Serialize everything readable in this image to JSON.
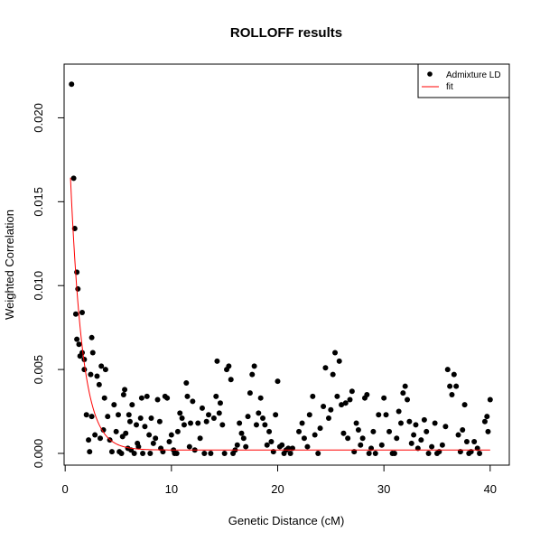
{
  "chart_data": {
    "type": "scatter",
    "title": "ROLLOFF results",
    "xlabel": "Genetic Distance (cM)",
    "ylabel": "Weighted Correlation",
    "xlim": [
      -0.1,
      41.8
    ],
    "ylim": [
      -0.0007,
      0.0232
    ],
    "x_ticks": [
      0,
      10,
      20,
      30,
      40
    ],
    "x_tick_labels": [
      "0",
      "10",
      "20",
      "30",
      "40"
    ],
    "y_ticks": [
      0.0,
      0.005,
      0.01,
      0.015,
      0.02
    ],
    "y_tick_labels": [
      "0.000",
      "0.005",
      "0.010",
      "0.015",
      "0.020"
    ],
    "legend": {
      "position": "top-right",
      "entries": [
        {
          "label": "Admixture LD",
          "type": "point",
          "color": "#000000"
        },
        {
          "label": "fit",
          "type": "line",
          "color": "#ff0000"
        }
      ]
    },
    "series": [
      {
        "name": "Admixture LD",
        "type": "scatter",
        "color": "#000000",
        "points": [
          [
            0.6,
            0.022
          ],
          [
            0.8,
            0.0164
          ],
          [
            0.9,
            0.0134
          ],
          [
            1.0,
            0.0083
          ],
          [
            1.1,
            0.0108
          ],
          [
            1.2,
            0.0098
          ],
          [
            1.1,
            0.0068
          ],
          [
            1.3,
            0.0065
          ],
          [
            1.4,
            0.0058
          ],
          [
            1.6,
            0.0084
          ],
          [
            1.6,
            0.006
          ],
          [
            1.8,
            0.0056
          ],
          [
            1.8,
            0.005
          ],
          [
            2.0,
            0.0023
          ],
          [
            2.2,
            0.0008
          ],
          [
            2.3,
            0.0001
          ],
          [
            2.4,
            0.0047
          ],
          [
            2.5,
            0.0069
          ],
          [
            2.5,
            0.0022
          ],
          [
            2.6,
            0.006
          ],
          [
            2.8,
            0.0011
          ],
          [
            3.0,
            0.0046
          ],
          [
            3.2,
            0.0041
          ],
          [
            3.3,
            0.0009
          ],
          [
            3.4,
            0.0052
          ],
          [
            3.6,
            0.0014
          ],
          [
            3.7,
            0.0033
          ],
          [
            3.8,
            0.005
          ],
          [
            4.0,
            0.0022
          ],
          [
            4.2,
            0.0008
          ],
          [
            4.4,
            0.0001
          ],
          [
            4.6,
            0.0029
          ],
          [
            4.8,
            0.0013
          ],
          [
            5.0,
            0.0023
          ],
          [
            5.1,
            0.0001
          ],
          [
            5.3,
            0.0
          ],
          [
            5.4,
            0.001
          ],
          [
            5.5,
            0.0035
          ],
          [
            5.6,
            0.0038
          ],
          [
            5.7,
            0.0012
          ],
          [
            5.9,
            0.0003
          ],
          [
            6.0,
            0.0023
          ],
          [
            6.1,
            0.0019
          ],
          [
            6.2,
            0.0002
          ],
          [
            6.3,
            0.0029
          ],
          [
            6.5,
            0.0
          ],
          [
            6.7,
            0.0017
          ],
          [
            6.8,
            0.0006
          ],
          [
            6.9,
            0.0004
          ],
          [
            7.1,
            0.0021
          ],
          [
            7.2,
            0.0033
          ],
          [
            7.3,
            0.0
          ],
          [
            7.5,
            0.0016
          ],
          [
            7.7,
            0.0034
          ],
          [
            7.9,
            0.0011
          ],
          [
            8.0,
            0.0
          ],
          [
            8.1,
            0.0021
          ],
          [
            8.3,
            0.0006
          ],
          [
            8.5,
            0.0009
          ],
          [
            8.7,
            0.0032
          ],
          [
            8.9,
            0.0019
          ],
          [
            9.0,
            0.0003
          ],
          [
            9.2,
            0.0001
          ],
          [
            9.4,
            0.0034
          ],
          [
            9.6,
            0.0033
          ],
          [
            9.8,
            0.0007
          ],
          [
            10.0,
            0.0011
          ],
          [
            10.2,
            0.0002
          ],
          [
            10.3,
            0.0
          ],
          [
            10.5,
            0.0
          ],
          [
            10.6,
            0.0013
          ],
          [
            10.8,
            0.0024
          ],
          [
            11.0,
            0.0021
          ],
          [
            11.2,
            0.0017
          ],
          [
            11.4,
            0.0042
          ],
          [
            11.5,
            0.0034
          ],
          [
            11.7,
            0.0004
          ],
          [
            11.8,
            0.0018
          ],
          [
            12.0,
            0.0031
          ],
          [
            12.2,
            0.0002
          ],
          [
            12.5,
            0.0018
          ],
          [
            12.7,
            0.0009
          ],
          [
            12.9,
            0.0027
          ],
          [
            13.1,
            0.0
          ],
          [
            13.3,
            0.0019
          ],
          [
            13.5,
            0.0023
          ],
          [
            13.7,
            0.0
          ],
          [
            14.0,
            0.0021
          ],
          [
            14.2,
            0.0034
          ],
          [
            14.3,
            0.0055
          ],
          [
            14.5,
            0.0024
          ],
          [
            14.6,
            0.003
          ],
          [
            14.8,
            0.0017
          ],
          [
            15.0,
            0.0
          ],
          [
            15.2,
            0.005
          ],
          [
            15.4,
            0.0052
          ],
          [
            15.6,
            0.0044
          ],
          [
            15.8,
            0.0
          ],
          [
            16.0,
            0.0002
          ],
          [
            16.2,
            0.0005
          ],
          [
            16.4,
            0.0018
          ],
          [
            16.6,
            0.0012
          ],
          [
            16.8,
            0.0009
          ],
          [
            17.0,
            0.0004
          ],
          [
            17.2,
            0.0022
          ],
          [
            17.4,
            0.0036
          ],
          [
            17.6,
            0.0047
          ],
          [
            17.8,
            0.0052
          ],
          [
            18.0,
            0.0017
          ],
          [
            18.2,
            0.0024
          ],
          [
            18.4,
            0.0033
          ],
          [
            18.6,
            0.0021
          ],
          [
            18.8,
            0.0017
          ],
          [
            19.0,
            0.0005
          ],
          [
            19.2,
            0.0013
          ],
          [
            19.4,
            0.0007
          ],
          [
            19.6,
            0.0001
          ],
          [
            19.8,
            0.0023
          ],
          [
            20.0,
            0.0043
          ],
          [
            20.2,
            0.0004
          ],
          [
            20.4,
            0.0005
          ],
          [
            20.6,
            0.0
          ],
          [
            20.8,
            0.0002
          ],
          [
            21.0,
            0.0003
          ],
          [
            21.2,
            0.0
          ],
          [
            21.4,
            0.0003
          ],
          [
            22.0,
            0.0013
          ],
          [
            22.3,
            0.0018
          ],
          [
            22.5,
            0.0009
          ],
          [
            22.8,
            0.0004
          ],
          [
            23.0,
            0.0023
          ],
          [
            23.3,
            0.0034
          ],
          [
            23.5,
            0.0011
          ],
          [
            23.8,
            0.0
          ],
          [
            24.0,
            0.0015
          ],
          [
            24.3,
            0.0028
          ],
          [
            24.5,
            0.0051
          ],
          [
            24.8,
            0.0021
          ],
          [
            25.0,
            0.0026
          ],
          [
            25.2,
            0.0047
          ],
          [
            25.4,
            0.006
          ],
          [
            25.6,
            0.0034
          ],
          [
            25.8,
            0.0055
          ],
          [
            26.0,
            0.0029
          ],
          [
            26.2,
            0.0012
          ],
          [
            26.4,
            0.003
          ],
          [
            26.6,
            0.0009
          ],
          [
            26.8,
            0.0032
          ],
          [
            27.0,
            0.0037
          ],
          [
            27.2,
            0.0001
          ],
          [
            27.4,
            0.0018
          ],
          [
            27.6,
            0.0014
          ],
          [
            27.8,
            0.0005
          ],
          [
            28.0,
            0.0009
          ],
          [
            28.2,
            0.0033
          ],
          [
            28.4,
            0.0035
          ],
          [
            28.6,
            0.0
          ],
          [
            28.8,
            0.0003
          ],
          [
            29.0,
            0.0013
          ],
          [
            29.2,
            0.0
          ],
          [
            29.5,
            0.0023
          ],
          [
            29.8,
            0.0005
          ],
          [
            30.0,
            0.0033
          ],
          [
            30.2,
            0.0023
          ],
          [
            30.5,
            0.0013
          ],
          [
            30.8,
            0.0
          ],
          [
            31.0,
            0.0
          ],
          [
            31.2,
            0.0009
          ],
          [
            31.4,
            0.0025
          ],
          [
            31.6,
            0.0018
          ],
          [
            31.8,
            0.0036
          ],
          [
            32.0,
            0.004
          ],
          [
            32.2,
            0.0032
          ],
          [
            32.4,
            0.0019
          ],
          [
            32.6,
            0.0006
          ],
          [
            32.8,
            0.0011
          ],
          [
            33.0,
            0.0017
          ],
          [
            33.2,
            0.0003
          ],
          [
            33.5,
            0.0008
          ],
          [
            33.8,
            0.002
          ],
          [
            34.0,
            0.0013
          ],
          [
            34.2,
            0.0
          ],
          [
            34.5,
            0.0004
          ],
          [
            34.8,
            0.0018
          ],
          [
            35.0,
            0.0
          ],
          [
            35.2,
            0.0001
          ],
          [
            35.5,
            0.0005
          ],
          [
            35.8,
            0.0016
          ],
          [
            36.0,
            0.005
          ],
          [
            36.2,
            0.004
          ],
          [
            36.4,
            0.0035
          ],
          [
            36.6,
            0.0047
          ],
          [
            36.8,
            0.004
          ],
          [
            37.0,
            0.0011
          ],
          [
            37.2,
            0.0001
          ],
          [
            37.4,
            0.0014
          ],
          [
            37.6,
            0.0029
          ],
          [
            37.8,
            0.0007
          ],
          [
            38.0,
            0.0
          ],
          [
            38.2,
            0.0001
          ],
          [
            38.5,
            0.0007
          ],
          [
            38.8,
            0.0003
          ],
          [
            39.0,
            0.0
          ],
          [
            39.5,
            0.0019
          ],
          [
            39.7,
            0.0022
          ],
          [
            39.8,
            0.0013
          ],
          [
            40.0,
            0.0032
          ]
        ]
      },
      {
        "name": "fit",
        "type": "line",
        "color": "#ff0000",
        "model": {
          "form": "A*exp(-b*x)+c",
          "A": 0.0252,
          "b": 0.88,
          "c": 0.0002,
          "x_range": [
            0.5,
            40
          ]
        }
      }
    ]
  }
}
